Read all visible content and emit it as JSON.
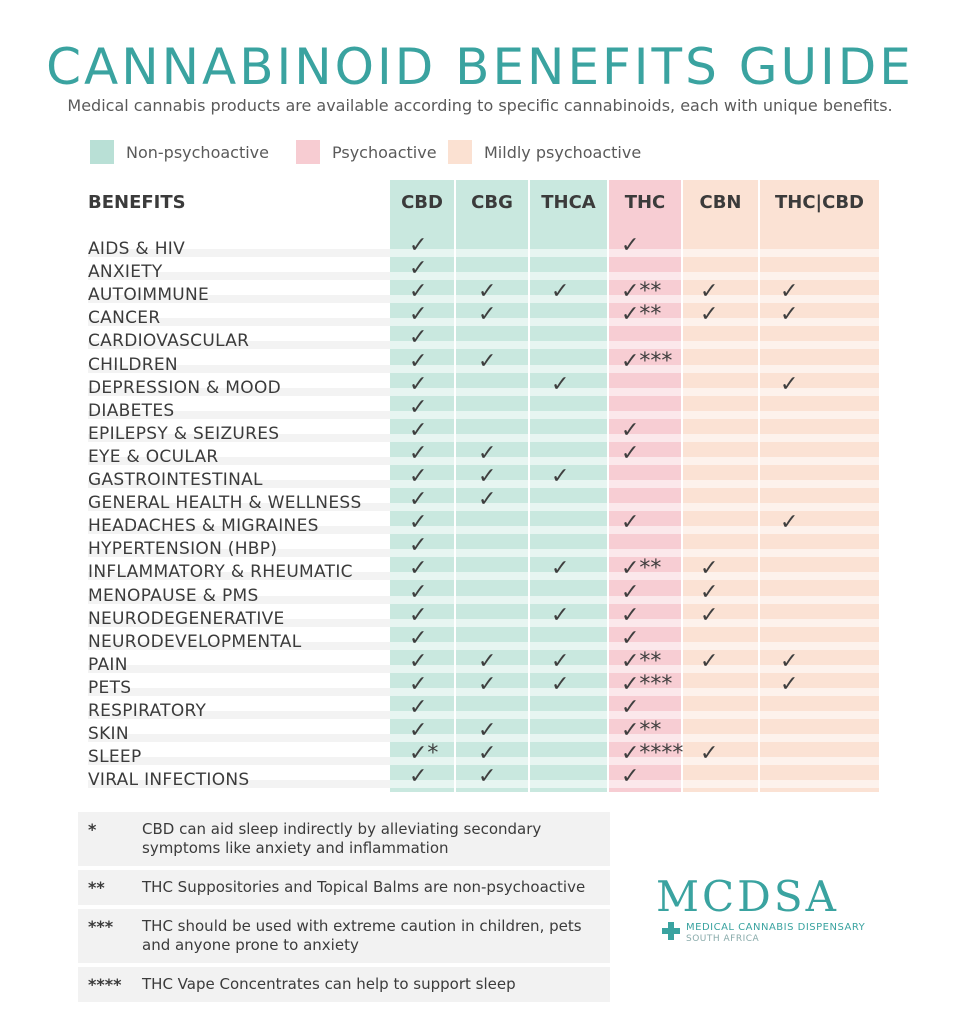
{
  "title": "CANNABINOID BENEFITS GUIDE",
  "subtitle": "Medical cannabis products are available according to specific cannabinoids, each with unique benefits.",
  "colors": {
    "teal": "#3aa3a0",
    "non_psychoactive": "#c7e7de",
    "psychoactive": "#f7ccd2",
    "mildly_psychoactive": "#fbe1d2"
  },
  "legend": [
    {
      "label": "Non-psychoactive",
      "color": "#b9e0d6"
    },
    {
      "label": "Psychoactive",
      "color": "#f7ccd2"
    },
    {
      "label": "Mildly psychoactive",
      "color": "#fbe1d2"
    }
  ],
  "table": {
    "benefits_header": "BENEFITS",
    "columns": [
      "CBD",
      "CBG",
      "THCA",
      "THC",
      "CBN",
      "THC|CBD"
    ],
    "rows": [
      {
        "label": "AIDS & HIV",
        "marks": [
          "✓",
          "",
          "",
          "✓",
          "",
          ""
        ]
      },
      {
        "label": "ANXIETY",
        "marks": [
          "✓",
          "",
          "",
          "",
          "",
          ""
        ]
      },
      {
        "label": "AUTOIMMUNE",
        "marks": [
          "✓",
          "✓",
          "✓",
          "✓**",
          "✓",
          "✓"
        ]
      },
      {
        "label": "CANCER",
        "marks": [
          "✓",
          "✓",
          "",
          "✓**",
          "✓",
          "✓"
        ]
      },
      {
        "label": "CARDIOVASCULAR",
        "marks": [
          "✓",
          "",
          "",
          "",
          "",
          ""
        ]
      },
      {
        "label": "CHILDREN",
        "marks": [
          "✓",
          "✓",
          "",
          "✓***",
          "",
          ""
        ]
      },
      {
        "label": "DEPRESSION & MOOD",
        "marks": [
          "✓",
          "",
          "✓",
          "",
          "",
          "✓"
        ]
      },
      {
        "label": "DIABETES",
        "marks": [
          "✓",
          "",
          "",
          "",
          "",
          ""
        ]
      },
      {
        "label": "EPILEPSY & SEIZURES",
        "marks": [
          "✓",
          "",
          "",
          "✓",
          "",
          ""
        ]
      },
      {
        "label": "EYE & OCULAR",
        "marks": [
          "✓",
          "✓",
          "",
          "✓",
          "",
          ""
        ]
      },
      {
        "label": "GASTROINTESTINAL",
        "marks": [
          "✓",
          "✓",
          "✓",
          "",
          "",
          ""
        ]
      },
      {
        "label": "GENERAL HEALTH & WELLNESS",
        "marks": [
          "✓",
          "✓",
          "",
          "",
          "",
          ""
        ]
      },
      {
        "label": "HEADACHES & MIGRAINES",
        "marks": [
          "✓",
          "",
          "",
          "✓",
          "",
          "✓"
        ]
      },
      {
        "label": "HYPERTENSION (HBP)",
        "marks": [
          "✓",
          "",
          "",
          "",
          "",
          ""
        ]
      },
      {
        "label": "INFLAMMATORY & RHEUMATIC",
        "marks": [
          "✓",
          "",
          "✓",
          "✓**",
          "✓",
          ""
        ]
      },
      {
        "label": "MENOPAUSE & PMS",
        "marks": [
          "✓",
          "",
          "",
          "✓",
          "✓",
          ""
        ]
      },
      {
        "label": "NEURODEGENERATIVE",
        "marks": [
          "✓",
          "",
          "✓",
          "✓",
          "✓",
          ""
        ]
      },
      {
        "label": "NEURODEVELOPMENTAL",
        "marks": [
          "✓",
          "",
          "",
          "✓",
          "",
          ""
        ]
      },
      {
        "label": "PAIN",
        "marks": [
          "✓",
          "✓",
          "✓",
          "✓**",
          "✓",
          "✓"
        ]
      },
      {
        "label": "PETS",
        "marks": [
          "✓",
          "✓",
          "✓",
          "✓***",
          "",
          "✓"
        ]
      },
      {
        "label": "RESPIRATORY",
        "marks": [
          "✓",
          "",
          "",
          "✓",
          "",
          ""
        ]
      },
      {
        "label": "SKIN",
        "marks": [
          "✓",
          "✓",
          "",
          "✓**",
          "",
          ""
        ]
      },
      {
        "label": "SLEEP",
        "marks": [
          "✓*",
          "✓",
          "",
          "✓****",
          "✓",
          ""
        ]
      },
      {
        "label": "VIRAL INFECTIONS",
        "marks": [
          "✓",
          "✓",
          "",
          "✓",
          "",
          ""
        ]
      }
    ]
  },
  "notes": [
    {
      "key": "*",
      "text": "CBD can aid sleep indirectly by alleviating secondary symptoms like anxiety and inflammation"
    },
    {
      "key": "**",
      "text": "THC Suppositories and Topical Balms are non-psychoactive"
    },
    {
      "key": "***",
      "text": "THC should be used with extreme caution in children, pets and anyone prone to anxiety"
    },
    {
      "key": "****",
      "text": "THC Vape Concentrates can help to support sleep"
    }
  ],
  "logo": {
    "name": "MCDSA",
    "line1": "MEDICAL CANNABIS DISPENSARY",
    "line2": "SOUTH AFRICA"
  }
}
